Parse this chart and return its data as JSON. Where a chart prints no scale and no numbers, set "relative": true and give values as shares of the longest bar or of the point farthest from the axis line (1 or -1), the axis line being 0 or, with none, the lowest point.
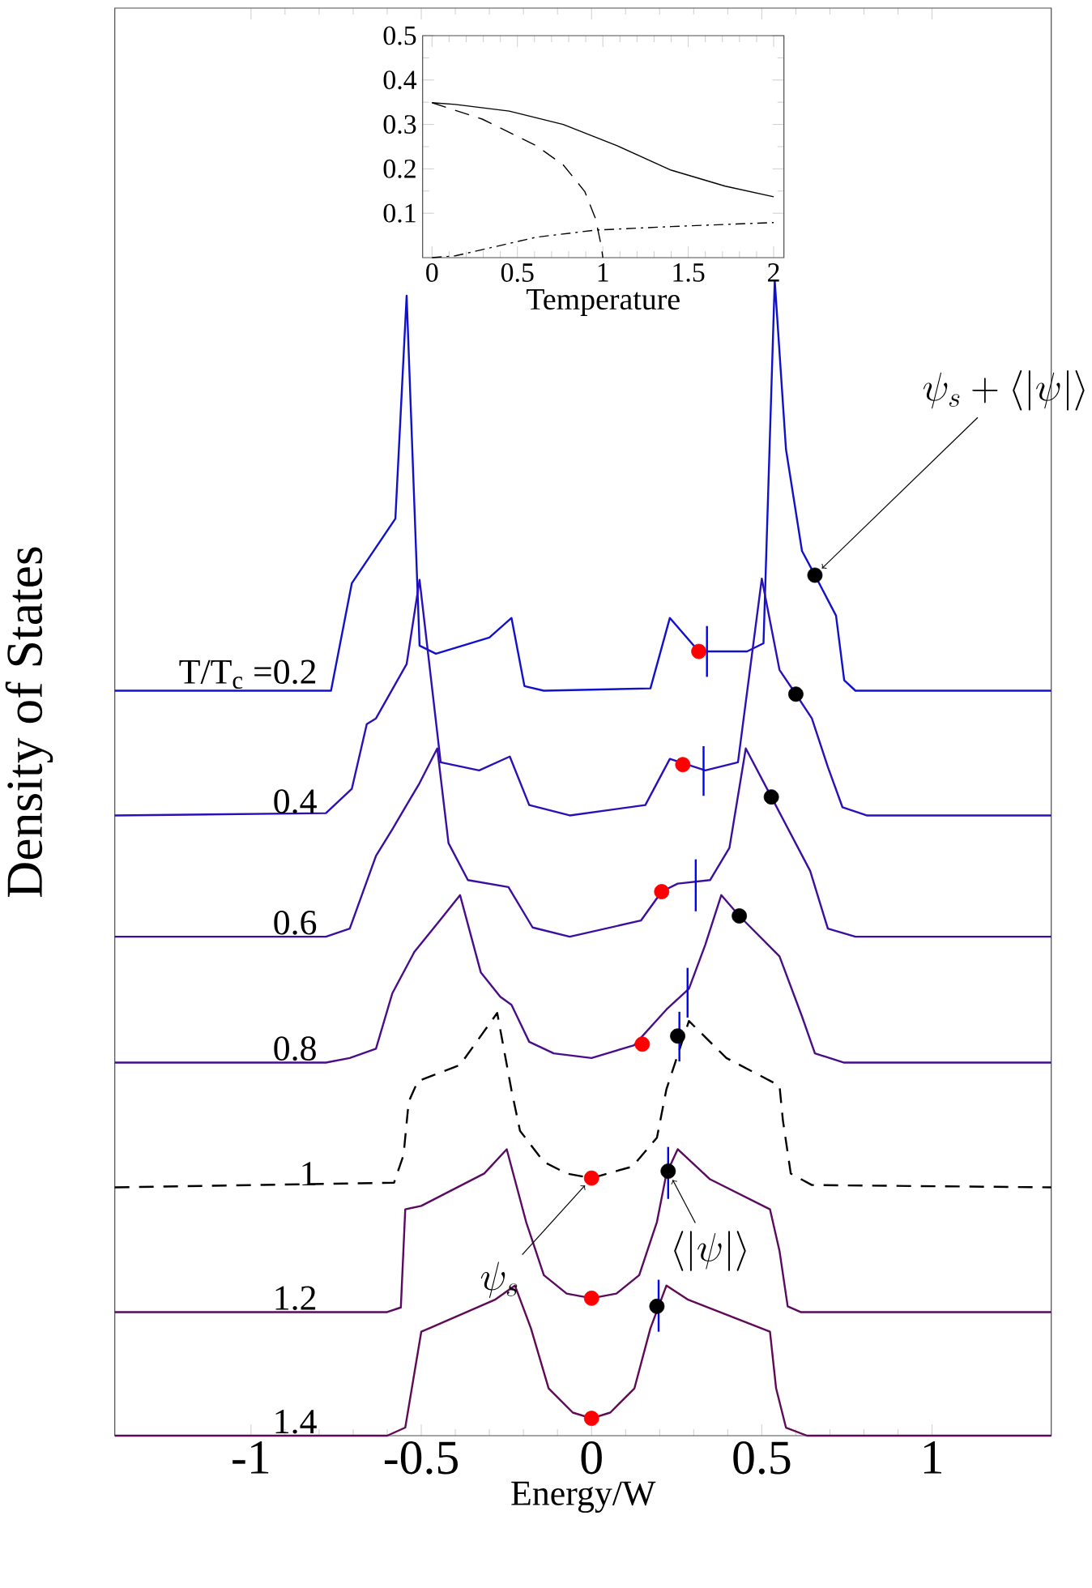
{
  "chart_data": [
    {
      "type": "line",
      "relative": true,
      "xlabel": "Energy/W",
      "ylabel": "Density of States",
      "xlim": [
        -1.4,
        1.35
      ],
      "xticks": [
        -1,
        -0.5,
        0,
        0.5,
        1
      ],
      "series": [
        {
          "name": "T/T$_{c}$ =0.2",
          "color": "#1111cc",
          "x": [
            -1.4,
            -0.765,
            -0.704,
            -0.576,
            -0.543,
            -0.505,
            -0.457,
            -0.3,
            -0.235,
            -0.197,
            -0.14,
            0.173,
            0.23,
            0.315,
            0.457,
            0.505,
            0.538,
            0.571,
            0.618,
            0.656,
            0.718,
            0.742,
            0.775,
            1.35
          ],
          "values": [
            0.645,
            0.645,
            0.738,
            0.794,
            0.987,
            0.684,
            0.677,
            0.691,
            0.708,
            0.649,
            0.645,
            0.647,
            0.708,
            0.679,
            0.679,
            0.686,
            1.0,
            0.854,
            0.766,
            0.745,
            0.71,
            0.654,
            0.645,
            0.645
          ]
        },
        {
          "name": "0.4",
          "color": "#2a10b8",
          "x": [
            -1.4,
            -0.78,
            -0.704,
            -0.66,
            -0.633,
            -0.543,
            -0.505,
            -0.443,
            -0.33,
            -0.24,
            -0.183,
            -0.064,
            0.158,
            0.23,
            0.334,
            0.43,
            0.5,
            0.552,
            0.6,
            0.647,
            0.694,
            0.737,
            0.808,
            1.35
          ],
          "values": [
            0.537,
            0.539,
            0.56,
            0.616,
            0.621,
            0.668,
            0.741,
            0.583,
            0.576,
            0.588,
            0.546,
            0.537,
            0.546,
            0.586,
            0.576,
            0.583,
            0.742,
            0.663,
            0.642,
            0.621,
            0.579,
            0.544,
            0.537,
            0.537
          ]
        },
        {
          "name": "0.6",
          "color": "#3a0fa0",
          "x": [
            -1.4,
            -0.78,
            -0.71,
            -0.633,
            -0.585,
            -0.505,
            -0.453,
            -0.42,
            -0.363,
            -0.244,
            -0.173,
            -0.064,
            0.145,
            0.206,
            0.253,
            0.348,
            0.405,
            0.453,
            0.528,
            0.642,
            0.694,
            0.775,
            1.35
          ],
          "values": [
            0.432,
            0.432,
            0.439,
            0.502,
            0.525,
            0.565,
            0.595,
            0.513,
            0.481,
            0.475,
            0.44,
            0.432,
            0.446,
            0.471,
            0.478,
            0.481,
            0.509,
            0.595,
            0.553,
            0.489,
            0.439,
            0.432,
            0.432
          ]
        },
        {
          "name": "0.8",
          "color": "#4a0d88",
          "x": [
            -1.4,
            -0.78,
            -0.71,
            -0.633,
            -0.585,
            -0.52,
            -0.443,
            -0.386,
            -0.325,
            -0.268,
            -0.235,
            -0.183,
            -0.111,
            0.0,
            0.125,
            0.22,
            0.286,
            0.334,
            0.381,
            0.434,
            0.552,
            0.618,
            0.656,
            0.742,
            1.35
          ],
          "values": [
            0.323,
            0.323,
            0.327,
            0.335,
            0.383,
            0.419,
            0.447,
            0.468,
            0.401,
            0.38,
            0.373,
            0.341,
            0.331,
            0.327,
            0.338,
            0.369,
            0.387,
            0.425,
            0.468,
            0.45,
            0.415,
            0.363,
            0.331,
            0.323,
            0.323
          ]
        },
        {
          "name": "1",
          "color": "#000000",
          "line_style": "dashed",
          "x": [
            -1.4,
            -0.58,
            -0.552,
            -0.537,
            -0.51,
            -0.386,
            -0.277,
            -0.235,
            -0.21,
            -0.14,
            -0.073,
            0.0,
            0.12,
            0.192,
            0.22,
            0.286,
            0.396,
            0.552,
            0.562,
            0.585,
            0.647,
            1.35
          ],
          "values": [
            0.215,
            0.219,
            0.243,
            0.289,
            0.307,
            0.321,
            0.366,
            0.299,
            0.264,
            0.237,
            0.227,
            0.223,
            0.233,
            0.258,
            0.3,
            0.359,
            0.327,
            0.303,
            0.273,
            0.227,
            0.217,
            0.215
          ]
        },
        {
          "name": "1.2",
          "color": "#5a0a60",
          "x": [
            -1.4,
            -0.6,
            -0.56,
            -0.547,
            -0.5,
            -0.315,
            -0.249,
            -0.192,
            -0.14,
            -0.073,
            0.0,
            0.073,
            0.14,
            0.192,
            0.22,
            0.253,
            0.348,
            0.524,
            0.552,
            0.576,
            0.614,
            1.35
          ],
          "values": [
            0.107,
            0.107,
            0.111,
            0.196,
            0.199,
            0.227,
            0.248,
            0.185,
            0.139,
            0.123,
            0.119,
            0.123,
            0.139,
            0.185,
            0.227,
            0.248,
            0.222,
            0.196,
            0.16,
            0.112,
            0.107,
            0.107
          ]
        },
        {
          "name": "1.4",
          "color": "#600a55",
          "x": [
            -1.4,
            -0.6,
            -0.547,
            -0.5,
            -0.476,
            -0.282,
            -0.225,
            -0.178,
            -0.126,
            -0.055,
            0.0,
            0.055,
            0.126,
            0.173,
            0.22,
            0.282,
            0.524,
            0.542,
            0.571,
            0.633,
            1.35
          ],
          "values": [
            0,
            0,
            0.007,
            0.09,
            0.093,
            0.118,
            0.13,
            0.093,
            0.041,
            0.02,
            0.015,
            0.02,
            0.041,
            0.093,
            0.13,
            0.118,
            0.09,
            0.041,
            0.007,
            0,
            0
          ]
        },
        {
          "type": "scatter",
          "marker": "circle",
          "color": "#ff0000",
          "x": [
            0.315,
            0.268,
            0.206,
            0.149,
            0,
            0,
            0
          ],
          "values": [
            0.679,
            0.581,
            0.471,
            0.339,
            0.223,
            0.119,
            0.015
          ]
        },
        {
          "type": "scatter",
          "marker": "circle",
          "color": "#000000",
          "x": [
            0.656,
            0.6,
            0.528,
            0.434,
            0.253,
            0.225,
            0.192
          ],
          "values": [
            0.745,
            0.642,
            0.553,
            0.45,
            0.346,
            0.229,
            0.112
          ]
        },
        {
          "color": "#0000ff",
          "x": [
            0.339,
            0.339
          ],
          "values": [
            0.657,
            0.701
          ]
        },
        {
          "color": "#0000ff",
          "x": [
            0.329,
            0.329
          ],
          "values": [
            0.554,
            0.597
          ]
        },
        {
          "color": "#0000ff",
          "x": [
            0.306,
            0.306
          ],
          "values": [
            0.454,
            0.499
          ]
        },
        {
          "color": "#0000ff",
          "x": [
            0.282,
            0.282
          ],
          "values": [
            0.362,
            0.405
          ]
        },
        {
          "color": "#0000ff",
          "x": [
            0.258,
            0.258
          ],
          "values": [
            0.324,
            0.367
          ]
        },
        {
          "color": "#0000ff",
          "x": [
            0.225,
            0.225
          ],
          "values": [
            0.205,
            0.25
          ]
        },
        {
          "color": "#0000ff",
          "x": [
            0.197,
            0.197
          ],
          "values": [
            0.09,
            0.135
          ]
        }
      ],
      "annotations": [
        {
          "text": "\\psi_s+\\langle|\\psi|\\rangle",
          "x": 0.656,
          "y": 0.745
        },
        {
          "text": "\\psi_s",
          "x": 0,
          "y": 0.223
        },
        {
          "text": "\\langle|\\psi|\\rangle",
          "x": 0.225,
          "y": 0.229
        }
      ]
    },
    {
      "type": "line",
      "xlabel": "Temperature",
      "xlim": [
        -0.055,
        2.06
      ],
      "ylim": [
        0,
        0.5
      ],
      "xticks": [
        0,
        0.5,
        1,
        1.5,
        2
      ],
      "yticks": [
        0.1,
        0.2,
        0.3,
        0.4,
        0.5
      ],
      "series": [
        {
          "color": "#000000",
          "line_style": "solid",
          "x": [
            0,
            0.136,
            0.452,
            0.768,
            1.084,
            1.4,
            1.716,
            2
          ],
          "values": [
            0.349,
            0.345,
            0.33,
            0.3,
            0.252,
            0.197,
            0.161,
            0.137
          ]
        },
        {
          "color": "#000000",
          "line_style": "dashed",
          "x": [
            0,
            0.294,
            0.61,
            0.768,
            0.894,
            0.957,
            0.99,
            1.0
          ],
          "values": [
            0.349,
            0.312,
            0.252,
            0.209,
            0.149,
            0.088,
            0.028,
            0.0
          ]
        },
        {
          "color": "#000000",
          "line_style": "dashdot",
          "x": [
            0,
            0.136,
            0.294,
            0.61,
            0.957,
            1.4,
            2
          ],
          "values": [
            0,
            0.004,
            0.018,
            0.046,
            0.062,
            0.07,
            0.079
          ]
        }
      ]
    }
  ]
}
